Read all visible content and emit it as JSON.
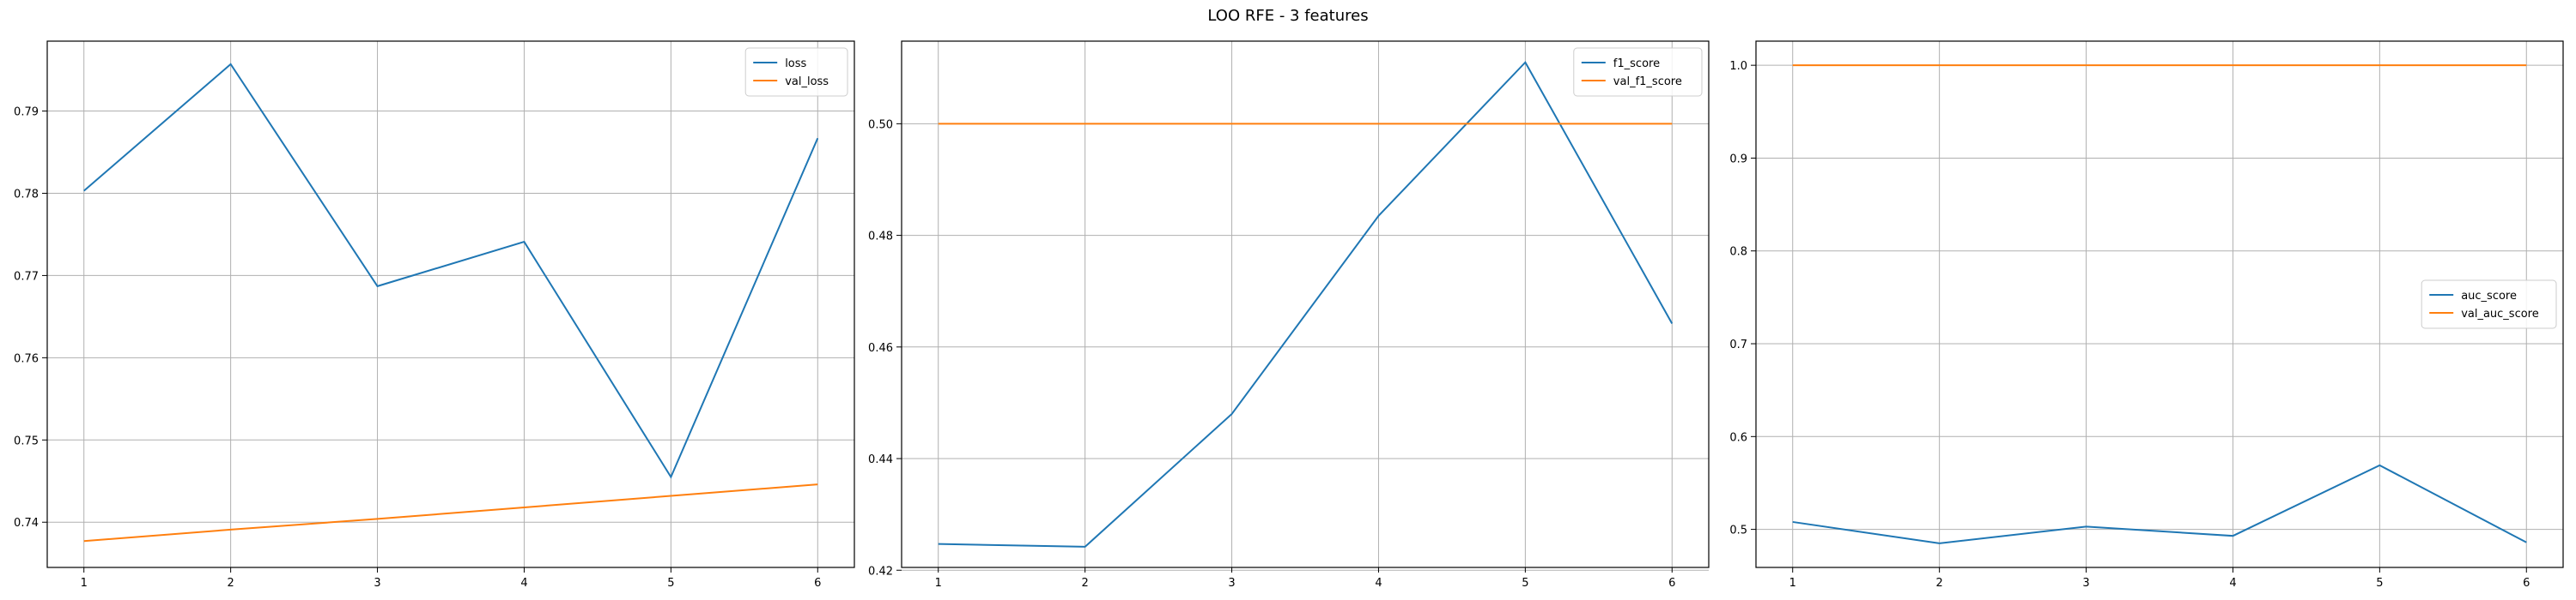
{
  "figure": {
    "suptitle": "LOO RFE - 3 features"
  },
  "chart_data": [
    {
      "type": "line",
      "x": [
        1,
        2,
        3,
        4,
        5,
        6
      ],
      "xticks": [
        1,
        2,
        3,
        4,
        5,
        6
      ],
      "ylim": [
        0.7345,
        0.7985
      ],
      "yticks": [
        0.74,
        0.75,
        0.76,
        0.77,
        0.78,
        0.79
      ],
      "yticklabels": [
        "0.74",
        "0.75",
        "0.76",
        "0.77",
        "0.78",
        "0.79"
      ],
      "grid": true,
      "legend_position": "top-right",
      "series": [
        {
          "name": "loss",
          "color": "#1f77b4",
          "values": [
            0.7803,
            0.7957,
            0.7687,
            0.7741,
            0.7455,
            0.7867
          ]
        },
        {
          "name": "val_loss",
          "color": "#ff7f0e",
          "values": [
            0.7377,
            0.7391,
            0.7404,
            0.7418,
            0.7432,
            0.7446
          ]
        }
      ]
    },
    {
      "type": "line",
      "x": [
        1,
        2,
        3,
        4,
        5,
        6
      ],
      "xticks": [
        1,
        2,
        3,
        4,
        5,
        6
      ],
      "ylim": [
        0.4205,
        0.5148
      ],
      "yticks": [
        0.42,
        0.44,
        0.46,
        0.48,
        0.5
      ],
      "yticklabels": [
        "0.42",
        "0.44",
        "0.46",
        "0.48",
        "0.50"
      ],
      "grid": true,
      "legend_position": "top-right",
      "series": [
        {
          "name": "f1_score",
          "color": "#1f77b4",
          "values": [
            0.4247,
            0.4242,
            0.448,
            0.4835,
            0.511,
            0.4642
          ]
        },
        {
          "name": "val_f1_score",
          "color": "#ff7f0e",
          "values": [
            0.5,
            0.5,
            0.5,
            0.5,
            0.5,
            0.5
          ]
        }
      ]
    },
    {
      "type": "line",
      "x": [
        1,
        2,
        3,
        4,
        5,
        6
      ],
      "xticks": [
        1,
        2,
        3,
        4,
        5,
        6
      ],
      "ylim": [
        0.459,
        1.026
      ],
      "yticks": [
        0.5,
        0.6,
        0.7,
        0.8,
        0.9,
        1.0
      ],
      "yticklabels": [
        "0.5",
        "0.6",
        "0.7",
        "0.8",
        "0.9",
        "1.0"
      ],
      "grid": true,
      "legend_position": "center-right",
      "series": [
        {
          "name": "auc_score",
          "color": "#1f77b4",
          "values": [
            0.508,
            0.485,
            0.503,
            0.493,
            0.569,
            0.486
          ]
        },
        {
          "name": "val_auc_score",
          "color": "#ff7f0e",
          "values": [
            1.0,
            1.0,
            1.0,
            1.0,
            1.0,
            1.0
          ]
        }
      ]
    }
  ]
}
